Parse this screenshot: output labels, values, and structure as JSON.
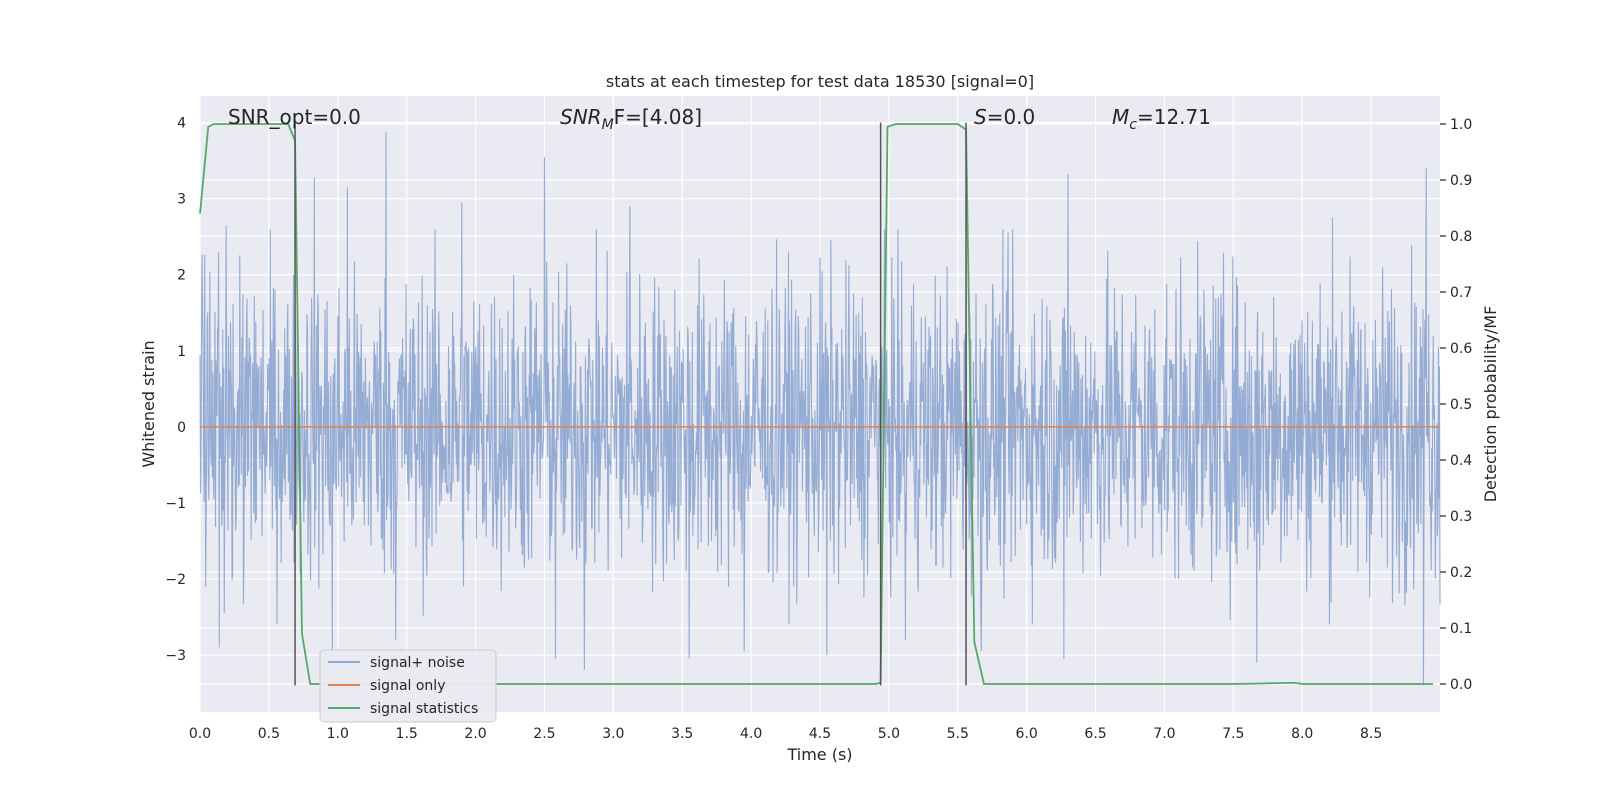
{
  "chart_data": {
    "type": "line",
    "title": "stats at each timestep for test data 18530 [signal=0]",
    "xlabel": "Time (s)",
    "ylabel": "Whitened strain",
    "y2label": "Detection probability/MF",
    "xlim": [
      0.0,
      9.0
    ],
    "ylim": [
      -3.75,
      4.35
    ],
    "y2lim": [
      -0.05,
      1.05
    ],
    "x_ticks": [
      "0.0",
      "0.5",
      "1.0",
      "1.5",
      "2.0",
      "2.5",
      "3.0",
      "3.5",
      "4.0",
      "4.5",
      "5.0",
      "5.5",
      "6.0",
      "6.5",
      "7.0",
      "7.5",
      "8.0",
      "8.5"
    ],
    "y_ticks": [
      "−3",
      "−2",
      "−1",
      "0",
      "1",
      "2",
      "3",
      "4"
    ],
    "y2_ticks": [
      "0.0",
      "0.1",
      "0.2",
      "0.3",
      "0.4",
      "0.5",
      "0.6",
      "0.7",
      "0.8",
      "0.9",
      "1.0"
    ],
    "grid": true,
    "legend_position": "lower-left",
    "annotations": [
      {
        "text": "SNR_opt=0.0"
      },
      {
        "text": "SNR_MF=[4.08]",
        "main": "SNR",
        "sub": "M",
        "tail": "F=[4.08]"
      },
      {
        "text": "S=0.0",
        "main": "S",
        "tail": "=0.0"
      },
      {
        "text": "M_c=12.71",
        "main": "M",
        "sub": "c",
        "tail": "=12.71"
      }
    ],
    "vertical_lines_x": [
      0.69,
      4.94,
      5.56
    ],
    "vertical_lines_y_range": [
      -3.4,
      4.0
    ],
    "series": [
      {
        "name": "signal+ noise",
        "color": "#8fa8d1",
        "kind": "noise",
        "x_range": [
          0.0,
          9.0
        ],
        "band_typical": [
          -1.6,
          1.6
        ],
        "extremes": [
          {
            "x": 0.14,
            "y": -2.9
          },
          {
            "x": 0.19,
            "y": 2.65
          },
          {
            "x": 0.83,
            "y": 3.28
          },
          {
            "x": 0.96,
            "y": -2.95
          },
          {
            "x": 1.07,
            "y": 3.15
          },
          {
            "x": 1.35,
            "y": 3.88
          },
          {
            "x": 1.42,
            "y": -2.8
          },
          {
            "x": 1.9,
            "y": 2.95
          },
          {
            "x": 2.5,
            "y": 3.55
          },
          {
            "x": 2.58,
            "y": -3.05
          },
          {
            "x": 2.79,
            "y": -3.2
          },
          {
            "x": 3.12,
            "y": 2.9
          },
          {
            "x": 3.55,
            "y": -3.05
          },
          {
            "x": 3.95,
            "y": -2.95
          },
          {
            "x": 4.55,
            "y": -3.0
          },
          {
            "x": 5.12,
            "y": -2.8
          },
          {
            "x": 5.67,
            "y": -2.95
          },
          {
            "x": 6.3,
            "y": 3.32
          },
          {
            "x": 6.27,
            "y": -3.05
          },
          {
            "x": 7.67,
            "y": -3.1
          },
          {
            "x": 8.22,
            "y": 2.75
          },
          {
            "x": 8.9,
            "y": 3.4
          },
          {
            "x": 8.88,
            "y": -3.4
          }
        ]
      },
      {
        "name": "signal only",
        "color": "#dd8452",
        "x": [
          0.0,
          9.0
        ],
        "y": [
          0.0,
          0.0
        ]
      },
      {
        "name": "signal statistics",
        "color": "#55a868",
        "axis": "right",
        "x": [
          0.0,
          0.06,
          0.1,
          0.15,
          0.2,
          0.3,
          0.4,
          0.5,
          0.6,
          0.64,
          0.69,
          0.74,
          0.8,
          0.9,
          1.0,
          2.0,
          3.0,
          4.0,
          4.5,
          4.9,
          4.94,
          4.99,
          5.05,
          5.2,
          5.3,
          5.4,
          5.5,
          5.56,
          5.62,
          5.69,
          5.75,
          6.0,
          7.0,
          7.5,
          7.9,
          7.95,
          8.0,
          8.5,
          8.95
        ],
        "y": [
          0.84,
          0.995,
          1.0,
          1.0,
          1.0,
          1.0,
          1.0,
          1.0,
          1.0,
          1.0,
          0.97,
          0.09,
          0.0,
          0.0,
          0.0,
          0.0,
          0.0,
          0.0,
          0.0,
          0.0,
          0.002,
          0.995,
          1.0,
          1.0,
          1.0,
          1.0,
          1.0,
          0.99,
          0.075,
          0.0,
          0.0,
          0.0,
          0.0,
          0.0,
          0.002,
          0.002,
          0.0,
          0.0,
          0.0
        ]
      }
    ]
  }
}
